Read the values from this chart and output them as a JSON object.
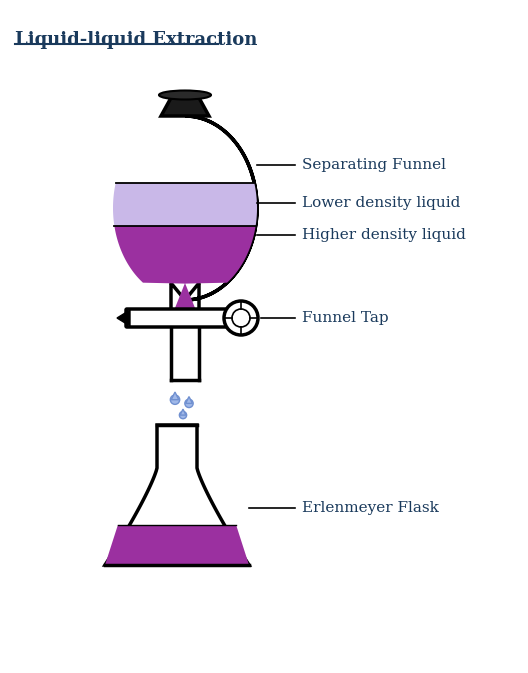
{
  "title": "Liquid-liquid Extraction",
  "title_color": "#1a3a5c",
  "background_color": "#ffffff",
  "line_color": "#000000",
  "line_width": 2.5,
  "labels": {
    "separating_funnel": "Separating Funnel",
    "lower_density": "Lower density liquid",
    "higher_density": "Higher density liquid",
    "funnel_tap": "Funnel Tap",
    "erlenmeyer": "Erlenmeyer Flask"
  },
  "label_color": "#1a3a5c",
  "colors": {
    "stopper": "#1a1a1a",
    "lower_liquid": "#c9b8e8",
    "higher_liquid": "#9b30a0",
    "flask_liquid": "#9b30a0",
    "drop": "#a0b8e8"
  }
}
